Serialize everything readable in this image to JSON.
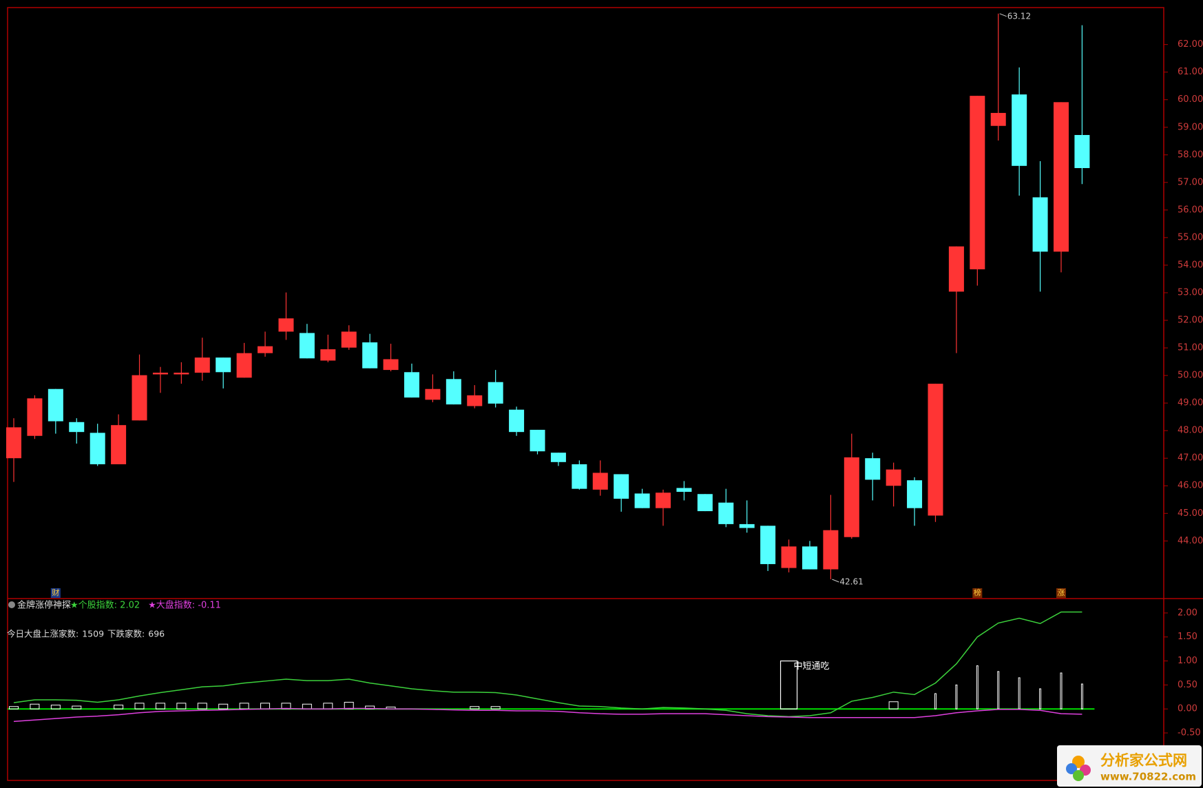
{
  "chart_data": [
    {
      "type": "candlestick",
      "series": [
        {
          "name": "K",
          "up_color": "#ff3434",
          "down_color": "#54ffff",
          "open": [
            47.0,
            47.81,
            49.51,
            48.31,
            47.92,
            46.78,
            48.37,
            50.04,
            50.04,
            50.1,
            50.65,
            49.92,
            50.81,
            51.59,
            51.54,
            50.54,
            51.01,
            51.2,
            50.2,
            50.12,
            49.12,
            49.87,
            48.89,
            49.76,
            48.76,
            48.03,
            47.2,
            46.78,
            45.86,
            46.42,
            45.72,
            45.19,
            45.92,
            45.7,
            45.39,
            44.61,
            44.55,
            43.02,
            43.8,
            42.97,
            44.14,
            47.0,
            46.0,
            46.2,
            44.92,
            53.04,
            53.85,
            59.05,
            60.19,
            56.46,
            54.49,
            58.72
          ],
          "high": [
            48.45,
            49.28,
            49.51,
            48.45,
            48.25,
            48.59,
            50.76,
            50.31,
            50.48,
            51.37,
            50.65,
            51.18,
            51.59,
            53.01,
            51.87,
            51.48,
            51.82,
            51.51,
            51.15,
            50.43,
            50.04,
            50.15,
            49.65,
            50.2,
            48.87,
            48.03,
            47.2,
            46.92,
            46.92,
            46.42,
            45.89,
            45.86,
            46.17,
            45.7,
            45.89,
            45.47,
            44.55,
            44.05,
            44.0,
            45.67,
            47.89,
            47.2,
            46.84,
            46.31,
            49.7,
            54.68,
            60.14,
            63.12,
            61.17,
            57.77,
            59.91,
            62.7
          ],
          "low": [
            46.14,
            47.7,
            47.89,
            47.53,
            46.72,
            46.78,
            48.37,
            49.37,
            49.7,
            49.81,
            49.53,
            49.92,
            50.68,
            51.29,
            50.62,
            50.48,
            50.93,
            50.26,
            50.15,
            49.2,
            49.03,
            48.95,
            48.81,
            48.84,
            47.81,
            47.14,
            46.72,
            45.86,
            45.64,
            45.06,
            45.19,
            44.55,
            45.47,
            45.08,
            44.5,
            44.3,
            42.91,
            42.86,
            42.97,
            42.61,
            44.08,
            45.47,
            45.25,
            44.55,
            44.69,
            50.81,
            53.26,
            58.52,
            56.52,
            53.04,
            53.74,
            56.94
          ],
          "close": [
            48.12,
            49.17,
            48.34,
            47.95,
            46.78,
            48.2,
            50.01,
            50.1,
            50.1,
            50.65,
            50.12,
            50.81,
            51.06,
            52.07,
            50.62,
            50.95,
            51.59,
            50.26,
            50.59,
            49.2,
            49.51,
            48.95,
            49.28,
            48.98,
            47.95,
            47.25,
            46.86,
            45.89,
            46.47,
            45.53,
            45.19,
            45.75,
            45.78,
            45.08,
            44.61,
            44.47,
            43.16,
            43.8,
            42.97,
            44.39,
            47.03,
            46.22,
            46.59,
            45.19,
            49.7,
            54.68,
            60.14,
            59.52,
            57.6,
            54.49,
            59.91,
            57.52
          ]
        }
      ],
      "ylim": [
        41.91,
        63.34
      ],
      "yticks": [
        {
          "value": 44,
          "label": "44.00"
        },
        {
          "value": 45,
          "label": "45.00"
        },
        {
          "value": 46,
          "label": "46.00"
        },
        {
          "value": 47,
          "label": "47.00"
        },
        {
          "value": 48,
          "label": "48.00"
        },
        {
          "value": 49,
          "label": "49.00"
        },
        {
          "value": 50,
          "label": "50.00"
        },
        {
          "value": 51,
          "label": "51.00"
        },
        {
          "value": 52,
          "label": "52.00"
        },
        {
          "value": 53,
          "label": "53.00"
        },
        {
          "value": 54,
          "label": "54.00"
        },
        {
          "value": 55,
          "label": "55.00"
        },
        {
          "value": 56,
          "label": "56.00"
        },
        {
          "value": 57,
          "label": "57.00"
        },
        {
          "value": 58,
          "label": "58.00"
        },
        {
          "value": 59,
          "label": "59.00"
        },
        {
          "value": 60,
          "label": "60.00"
        },
        {
          "value": 61,
          "label": "61.00"
        },
        {
          "value": 62,
          "label": "62.00"
        }
      ],
      "max_marker": 63.12,
      "min_marker": 42.61,
      "event_tags": [
        "财",
        "榜",
        "涨"
      ]
    },
    {
      "type": "indicator",
      "title": "金牌涨停神探",
      "breadth": {
        "up_label": "今日大盘上涨家数:",
        "up": 1509,
        "down_label": "下跌家数:",
        "down": 696
      },
      "signal_label": "中短通吃",
      "signal_values": [
        null,
        null,
        null,
        null,
        null,
        null,
        null,
        null,
        null,
        null,
        null,
        null,
        null,
        null,
        null,
        null,
        null,
        null,
        null,
        null,
        null,
        null,
        null,
        null,
        null,
        null,
        null,
        null,
        null,
        null,
        null,
        null,
        null,
        null,
        null,
        null,
        null,
        1.0,
        null,
        null,
        null,
        null,
        null,
        null,
        null,
        null,
        null,
        null,
        null,
        null,
        null,
        null
      ],
      "bars": [
        0.05,
        0.1,
        0.08,
        0.06,
        0,
        0.08,
        0.12,
        0.12,
        0.12,
        0.12,
        0.1,
        0.12,
        0.12,
        0.12,
        0.1,
        0.12,
        0.14,
        0.06,
        0.04,
        0,
        0,
        0,
        0.05,
        0.05,
        0,
        0,
        0,
        0,
        0,
        0,
        0,
        0,
        0,
        0,
        0,
        0,
        0,
        0,
        0,
        0,
        0,
        0,
        0.15,
        0,
        0.32,
        0.5,
        0.9,
        0.78,
        0.65,
        0.42,
        0.75,
        0.52
      ],
      "bar_color": "#ffffff",
      "series": [
        {
          "name": "★个股指数: 2.02",
          "color": "#3cd23c",
          "values": [
            0.13,
            0.19,
            0.19,
            0.18,
            0.14,
            0.19,
            0.27,
            0.34,
            0.4,
            0.46,
            0.48,
            0.54,
            0.58,
            0.62,
            0.59,
            0.59,
            0.62,
            0.54,
            0.48,
            0.42,
            0.38,
            0.35,
            0.35,
            0.34,
            0.29,
            0.21,
            0.13,
            0.06,
            0.05,
            0.02,
            0,
            0.03,
            0.02,
            0,
            -0.03,
            -0.1,
            -0.14,
            -0.16,
            -0.14,
            -0.08,
            0.16,
            0.24,
            0.35,
            0.3,
            0.54,
            0.94,
            1.5,
            1.79,
            1.89,
            1.78,
            2.02,
            2.02
          ]
        },
        {
          "name": "★大盘指数: -0.11",
          "color": "#e040e0",
          "values": [
            -0.26,
            -0.23,
            -0.2,
            -0.17,
            -0.15,
            -0.12,
            -0.08,
            -0.05,
            -0.04,
            -0.03,
            -0.02,
            -0.01,
            0,
            0.01,
            0,
            0,
            0.01,
            0.01,
            0,
            0,
            -0.01,
            -0.02,
            -0.03,
            -0.03,
            -0.04,
            -0.04,
            -0.05,
            -0.08,
            -0.1,
            -0.11,
            -0.11,
            -0.1,
            -0.1,
            -0.1,
            -0.12,
            -0.14,
            -0.16,
            -0.17,
            -0.18,
            -0.18,
            -0.18,
            -0.18,
            -0.18,
            -0.18,
            -0.14,
            -0.08,
            -0.04,
            -0.01,
            -0.01,
            -0.03,
            -0.1,
            -0.11
          ]
        }
      ],
      "zero_line_color": "#00e000",
      "ylim": [
        -1.49,
        2.3
      ],
      "yticks": [
        {
          "value": -0.5,
          "label": "-0.50"
        },
        {
          "value": 0,
          "label": "0.00"
        },
        {
          "value": 0.5,
          "label": "0.50"
        },
        {
          "value": 1,
          "label": "1.00"
        },
        {
          "value": 1.5,
          "label": "1.50"
        },
        {
          "value": 2,
          "label": "2.00"
        }
      ]
    }
  ],
  "logo": {
    "name": "分析家公式网",
    "url": "www.70822.com"
  }
}
